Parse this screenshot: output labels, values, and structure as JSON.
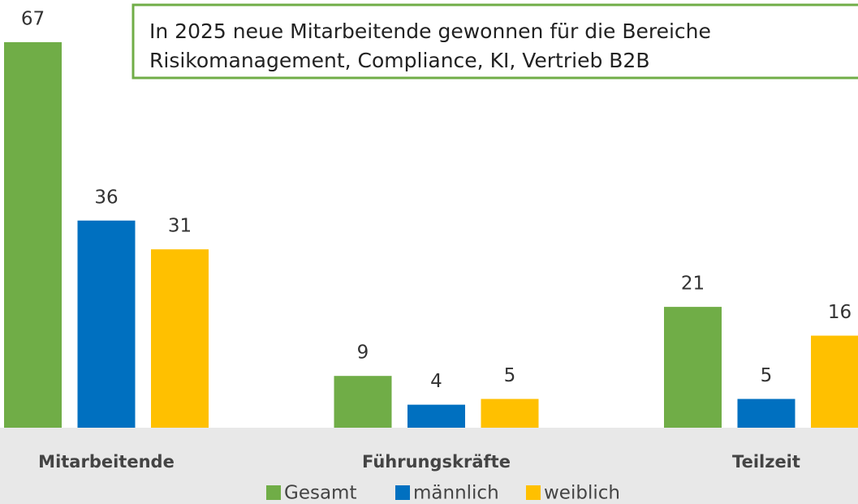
{
  "chart_data": {
    "type": "bar",
    "annotation": [
      "In 2025 neue Mitarbeitende gewonnen für die Bereiche",
      "Risikomanagement, Compliance, KI, Vertrieb B2B"
    ],
    "categories": [
      "Mitarbeitende",
      "Führungskräfte",
      "Teilzeit"
    ],
    "series": [
      {
        "name": "Gesamt",
        "color": "#70ad47",
        "values": [
          67,
          9,
          21
        ]
      },
      {
        "name": "männlich",
        "color": "#0070c0",
        "values": [
          36,
          4,
          5
        ]
      },
      {
        "name": "weiblich",
        "color": "#ffc000",
        "values": [
          31,
          5,
          16
        ]
      }
    ],
    "legend": "bottom"
  }
}
